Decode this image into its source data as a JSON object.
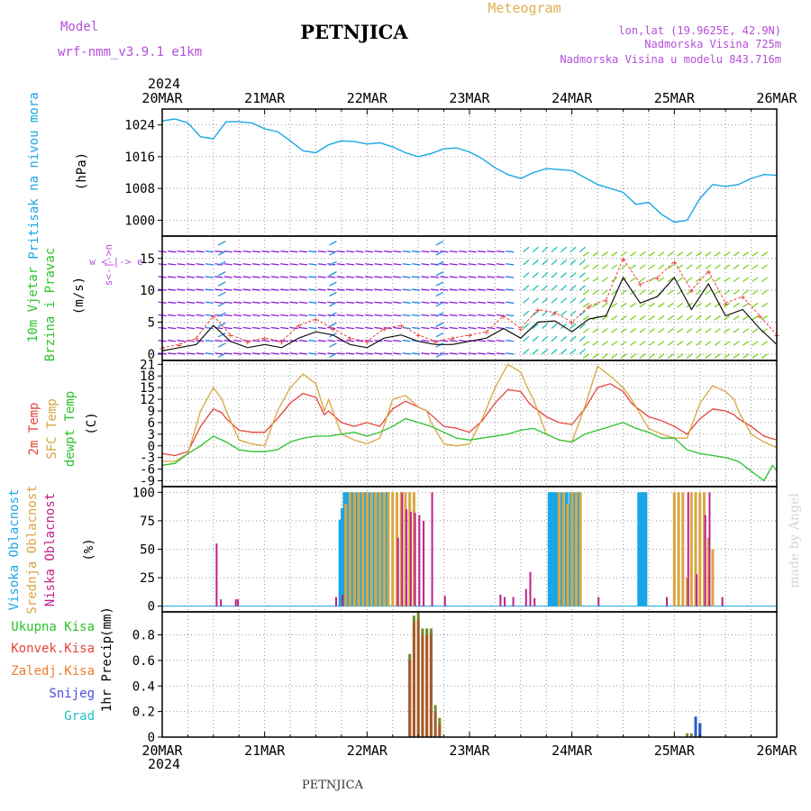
{
  "header": {
    "model_label": "Model",
    "model_name": "wrf-nmm_v3.9.1 e1km",
    "station": "PETNJICA",
    "product": "Meteogram",
    "lonlat": "lon,lat (19.9625E, 42.9N)",
    "elevation": "Nadmorska Visina 725m",
    "model_elevation": "Nadmorska Visina u modelu 843.716m",
    "footer_station": "PETNJICA",
    "credit": "made by Angel",
    "year_top": "2024",
    "year_bottom": "2024"
  },
  "colors": {
    "pressure": "#1aa6e6",
    "temp2m": "#e6443c",
    "sfc_temp": "#d9a640",
    "dewpoint": "#2bc22b",
    "high_cloud": "#1aa6e6",
    "mid_cloud": "#d9a640",
    "low_cloud": "#c01e8a",
    "total_precip": "#2bc22b",
    "conv_precip": "#e6443c",
    "frz_precip": "#f07a30",
    "snow": "#4a4ae0",
    "hail": "#1ec0c0",
    "title_purple": "#b44fd8",
    "title_gold": "#dcb050",
    "credit": "#cfd8cf"
  },
  "chart_data": [
    {
      "type": "line",
      "ylabel": "Pritisak na nivou mora",
      "units": "(hPa)",
      "x_ticks": [
        "20MAR",
        "21MAR",
        "22MAR",
        "23MAR",
        "24MAR",
        "25MAR",
        "26MAR"
      ],
      "ylim": [
        996,
        1028
      ],
      "yticks": [
        1000,
        1008,
        1016,
        1024
      ],
      "grid": true,
      "x_hours": [
        0,
        3,
        6,
        9,
        12,
        15,
        18,
        21,
        24,
        27,
        30,
        33,
        36,
        39,
        42,
        45,
        48,
        51,
        54,
        57,
        60,
        63,
        66,
        69,
        72,
        75,
        78,
        81,
        84,
        87,
        90,
        96,
        102,
        108,
        111,
        114,
        117,
        120,
        123,
        126,
        129,
        132,
        135,
        138,
        141,
        144
      ],
      "values": [
        1025,
        1025.5,
        1024.5,
        1021,
        1020.5,
        1024.8,
        1024.8,
        1024.5,
        1023,
        1022.3,
        1020,
        1017.5,
        1017,
        1019,
        1020,
        1019.8,
        1019.2,
        1019.5,
        1018.5,
        1017,
        1016,
        1016.8,
        1018,
        1018.2,
        1017.2,
        1015.5,
        1013.2,
        1011.5,
        1010.5,
        1012,
        1013,
        1012.5,
        1009,
        1007,
        1004,
        1004.5,
        1001.5,
        999.5,
        1000,
        1005.5,
        1009,
        1008.5,
        1009,
        1010.5,
        1011.5,
        1011.3
      ]
    },
    {
      "type": "line",
      "ylabel": "10m Vjetar Brzina i Pravac",
      "units": "(m/s)",
      "compass": "w <-|-> e",
      "compass_ns": "s<-|->n",
      "ylim": [
        -1,
        18.5
      ],
      "yticks": [
        0,
        5,
        10,
        15
      ],
      "grid": true,
      "series": [
        {
          "name": "wind_speed",
          "x_hours": [
            0,
            4,
            8,
            12,
            16,
            20,
            24,
            28,
            32,
            36,
            40,
            44,
            48,
            52,
            56,
            60,
            64,
            68,
            72,
            76,
            80,
            84,
            88,
            92,
            96,
            100,
            104,
            108,
            112,
            116,
            120,
            124,
            128,
            132,
            136,
            140,
            144
          ],
          "values": [
            0.5,
            1,
            1.5,
            4.5,
            2,
            1,
            1.5,
            1,
            2.5,
            3.5,
            3,
            1.5,
            1,
            2.5,
            3,
            2,
            1.5,
            1.5,
            2,
            2.5,
            4,
            2.5,
            5,
            5.2,
            3.5,
            5.5,
            6,
            12,
            8,
            9,
            12,
            7,
            11,
            6,
            7,
            4,
            1.5
          ]
        },
        {
          "name": "gust",
          "x_hours": [
            0,
            4,
            8,
            12,
            16,
            20,
            24,
            28,
            32,
            36,
            40,
            44,
            48,
            52,
            56,
            60,
            64,
            68,
            72,
            76,
            80,
            84,
            88,
            92,
            96,
            100,
            104,
            108,
            112,
            116,
            120,
            124,
            128,
            132,
            136,
            140,
            144
          ],
          "values": [
            1,
            1.5,
            2.5,
            6,
            3,
            2,
            2.5,
            2,
            4.5,
            5.5,
            4,
            2.5,
            2,
            4,
            4.5,
            3,
            2,
            2.5,
            3,
            3.5,
            6,
            4,
            7,
            6.5,
            5,
            7.5,
            8.5,
            15,
            11,
            12,
            14.5,
            10,
            13,
            8,
            9,
            6,
            3
          ]
        }
      ]
    },
    {
      "type": "line",
      "ylabel": "2m Temp / SFC Temp / dewpt Temp",
      "series_labels": [
        "2m Temp",
        "SFC Temp",
        "dewpt Temp"
      ],
      "units": "(C)",
      "ylim": [
        -10.5,
        22
      ],
      "yticks": [
        -9,
        -6,
        -3,
        0,
        3,
        6,
        9,
        12,
        15,
        18,
        21
      ],
      "grid": true,
      "series": [
        {
          "name": "2m Temp",
          "x_hours": [
            0,
            3,
            6,
            9,
            12,
            14,
            15,
            18,
            21,
            24,
            27,
            30,
            33,
            36,
            38,
            39,
            42,
            45,
            48,
            51,
            54,
            57,
            60,
            62,
            63,
            66,
            69,
            72,
            75,
            78,
            81,
            84,
            86,
            87,
            90,
            93,
            96,
            99,
            102,
            105,
            108,
            110,
            111,
            114,
            117,
            120,
            123,
            126,
            129,
            132,
            134,
            135,
            138,
            141,
            144
          ],
          "values": [
            -2,
            -2.5,
            -1.5,
            5,
            9.5,
            8.5,
            7,
            4,
            3.5,
            3.5,
            7,
            11,
            13.5,
            12.5,
            8,
            9,
            6,
            5,
            6,
            5,
            9.5,
            11.5,
            10,
            9,
            8,
            5,
            4.5,
            3.5,
            6.5,
            11,
            14.5,
            14,
            11,
            10,
            7.5,
            6,
            5.5,
            9.5,
            15,
            16,
            14,
            11,
            10,
            7.5,
            6.5,
            5,
            3,
            7,
            9.5,
            9,
            8,
            7,
            5,
            2.5,
            1.5
          ]
        },
        {
          "name": "SFC Temp",
          "x_hours": [
            0,
            3,
            6,
            9,
            12,
            14,
            15,
            18,
            21,
            24,
            27,
            30,
            33,
            36,
            38,
            39,
            42,
            45,
            48,
            51,
            54,
            57,
            60,
            62,
            63,
            66,
            69,
            72,
            75,
            78,
            81,
            84,
            86,
            87,
            90,
            93,
            96,
            99,
            102,
            105,
            108,
            110,
            111,
            114,
            117,
            120,
            123,
            126,
            129,
            132,
            134,
            135,
            138,
            141,
            144
          ],
          "values": [
            -4,
            -4,
            -2,
            9,
            15,
            12,
            9,
            1.5,
            0.5,
            0,
            9,
            15,
            18.5,
            16,
            9,
            12,
            3,
            1.5,
            0.5,
            2,
            12,
            13,
            10,
            9,
            6,
            0.5,
            0,
            0.5,
            7,
            15,
            21,
            19,
            14,
            12,
            3,
            1.5,
            1,
            10,
            20.5,
            18,
            15,
            12,
            10,
            4.5,
            3,
            2,
            2,
            11,
            15.5,
            14,
            12,
            9,
            3,
            1,
            -0.5
          ]
        },
        {
          "name": "dewpt Temp",
          "x_hours": [
            0,
            3,
            6,
            9,
            12,
            15,
            18,
            21,
            24,
            27,
            30,
            33,
            36,
            39,
            42,
            45,
            48,
            51,
            54,
            57,
            60,
            63,
            66,
            69,
            72,
            75,
            78,
            81,
            84,
            87,
            90,
            93,
            96,
            99,
            102,
            105,
            108,
            111,
            114,
            117,
            120,
            123,
            126,
            129,
            132,
            135,
            138,
            141,
            143,
            144
          ],
          "values": [
            -5,
            -4.5,
            -2,
            0,
            2.5,
            1,
            -1,
            -1.5,
            -1.5,
            -1,
            1,
            2,
            2.5,
            2.5,
            3,
            3.5,
            2.5,
            3.5,
            5,
            7,
            6,
            5,
            3.5,
            2,
            1.5,
            2,
            2.5,
            3,
            4,
            4.5,
            3,
            1.5,
            1,
            3,
            4,
            5,
            6,
            4.5,
            3.5,
            2,
            2,
            -1,
            -2,
            -2.5,
            -3,
            -4,
            -6.5,
            -9,
            -5,
            -6.5
          ]
        }
      ]
    },
    {
      "type": "bar",
      "ylabel": "Visoka Oblacnost / Srednja Oblacnost / Niska Oblacnost",
      "series_labels": [
        "Visoka Oblacnost",
        "Srednja Oblacnost",
        "Niska Oblacnost"
      ],
      "units": "(%)",
      "ylim": [
        -5,
        105
      ],
      "yticks": [
        0,
        25,
        50,
        75,
        100
      ],
      "grid": true,
      "series": [
        {
          "name": "Visoka Oblacnost",
          "x_hours": [
            42,
            42.5,
            43,
            43.5,
            44,
            44.5,
            45,
            46,
            47,
            48,
            49,
            50,
            51,
            52,
            53,
            91,
            91.5,
            92,
            92.5,
            93,
            94,
            95,
            96,
            97,
            98,
            112,
            112.5,
            113,
            113.5
          ],
          "values": [
            76,
            86,
            100,
            100,
            100,
            100,
            100,
            100,
            100,
            100,
            100,
            100,
            100,
            100,
            100,
            100,
            100,
            100,
            100,
            100,
            100,
            100,
            100,
            100,
            100,
            100,
            100,
            100,
            100
          ]
        },
        {
          "name": "Srednja Oblacnost",
          "x_hours": [
            43,
            44,
            45,
            46,
            47,
            48,
            49,
            50,
            51,
            52,
            53,
            54,
            55,
            56,
            57,
            58,
            59,
            93,
            94,
            95,
            96,
            97,
            98,
            120,
            121,
            122,
            123,
            124,
            125,
            126,
            127,
            128,
            129
          ],
          "values": [
            90,
            100,
            100,
            100,
            100,
            100,
            100,
            100,
            100,
            100,
            100,
            100,
            100,
            100,
            100,
            100,
            100,
            100,
            100,
            90,
            100,
            100,
            100,
            100,
            100,
            100,
            25,
            100,
            100,
            100,
            100,
            60,
            50
          ]
        },
        {
          "name": "Niska Oblacnost",
          "x_hours": [
            12.5,
            13.5,
            17,
            17.5,
            40.5,
            42,
            55,
            56,
            57,
            58,
            59,
            60,
            61,
            63,
            66,
            79,
            80,
            82,
            85,
            86,
            87,
            102,
            118,
            123,
            125,
            127,
            128,
            131
          ],
          "values": [
            55,
            6,
            6,
            6,
            8,
            10,
            60,
            100,
            85,
            83,
            82,
            80,
            75,
            100,
            9,
            10,
            8,
            8,
            15,
            30,
            7,
            8,
            8,
            100,
            28,
            80,
            100,
            8
          ]
        }
      ]
    },
    {
      "type": "bar",
      "ylabel": "1hr Precip",
      "units": "(mm)",
      "legend": [
        "Ukupna Kisa",
        "Konvek.Kisa",
        "Zaledj.Kisa",
        "Snijeg",
        "Grad"
      ],
      "ylim": [
        0,
        0.98
      ],
      "yticks": [
        0,
        0.2,
        0.4,
        0.6,
        0.8
      ],
      "ytick_labels": [
        "0",
        "0.2",
        "0.4",
        "0.6",
        "0.8"
      ],
      "grid": true,
      "series": [
        {
          "name": "Ukupna Kisa",
          "x_hours": [
            58,
            59,
            60,
            61,
            62,
            63,
            64,
            65,
            123,
            124,
            125,
            126
          ],
          "values": [
            0.65,
            0.95,
            0.98,
            0.85,
            0.85,
            0.85,
            0.25,
            0.15,
            0.03,
            0.03,
            0.16,
            0.11
          ]
        },
        {
          "name": "Konvek.Kisa",
          "x_hours": [
            58,
            59,
            60,
            61,
            62,
            63,
            64,
            65
          ],
          "values": [
            0.6,
            0.9,
            0.92,
            0.8,
            0.8,
            0.8,
            0.2,
            0.1
          ]
        },
        {
          "name": "Snijeg",
          "x_hours": [
            125,
            126
          ],
          "values": [
            0.16,
            0.11
          ]
        }
      ]
    }
  ]
}
